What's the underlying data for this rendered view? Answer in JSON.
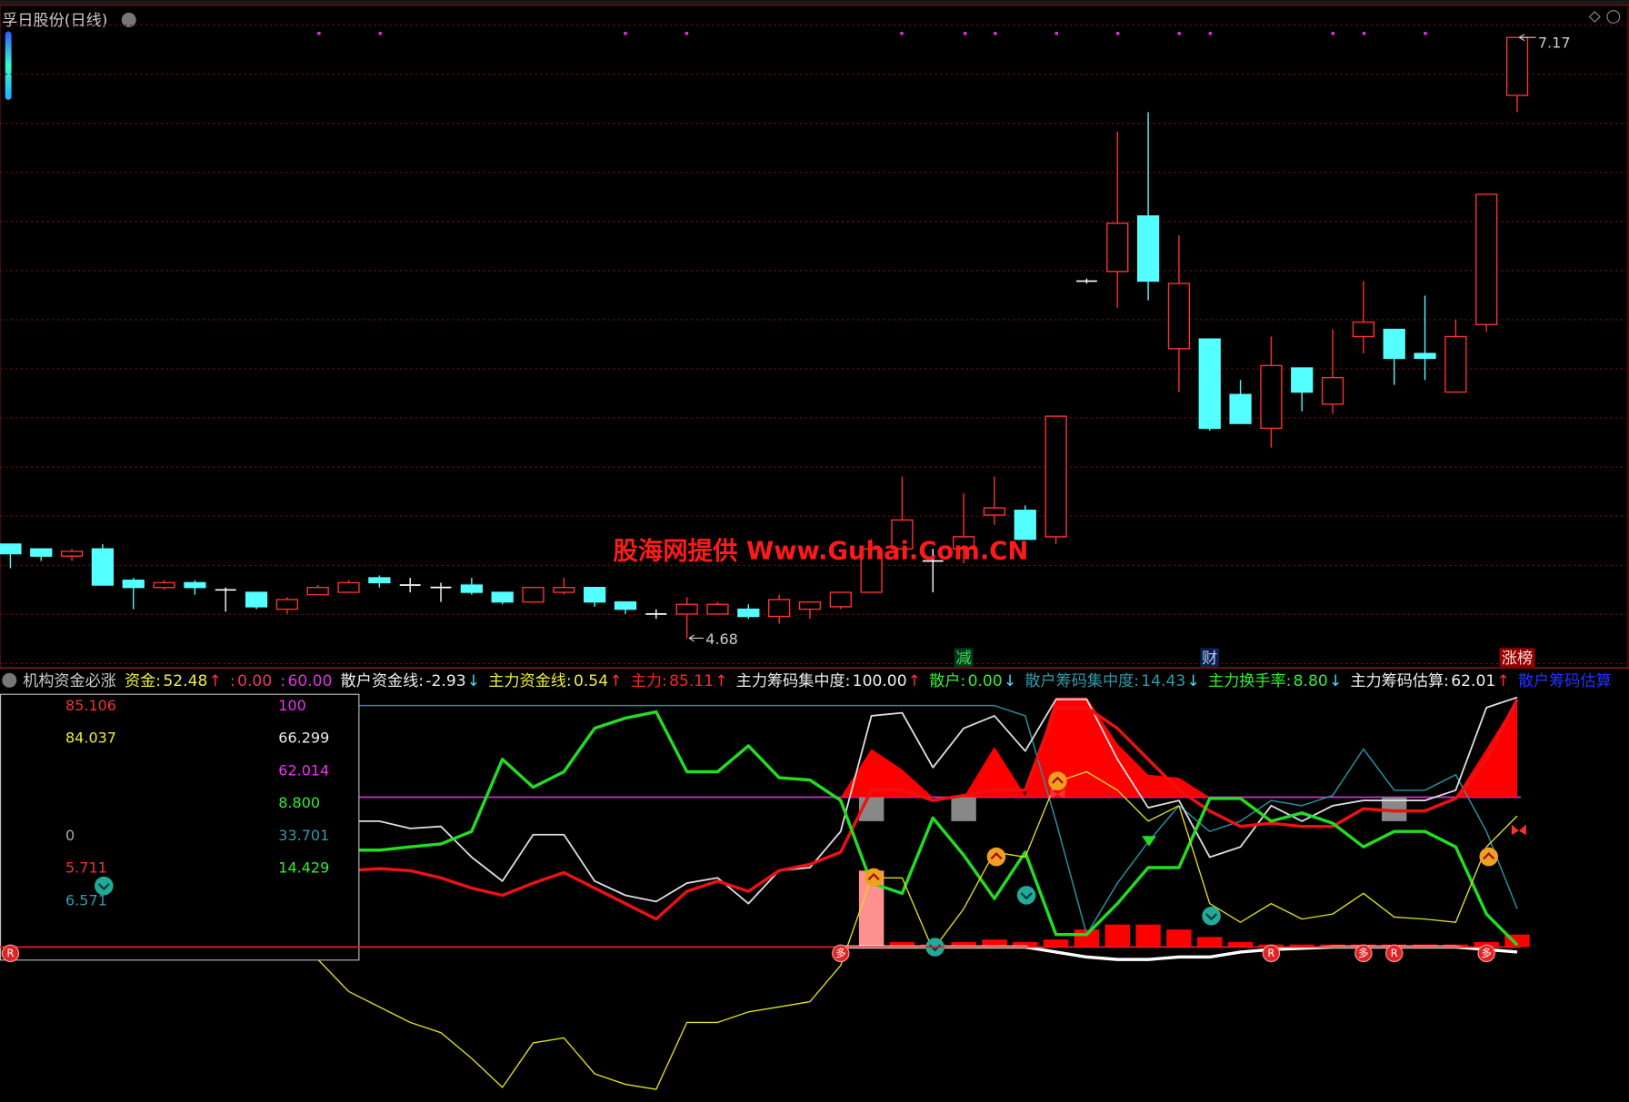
{
  "chart_data": [
    {
      "type": "candlestick",
      "title": "孚日股份(日线)",
      "watermark": "股海网提供 Www.Guhai.Com.CN",
      "ylim": [
        4.57,
        7.29
      ],
      "up_color": "#ff3232",
      "down_color": "#54ffff",
      "flat_color": "#ffffff",
      "open": [
        5.07,
        5.05,
        5.02,
        5.05,
        4.92,
        4.89,
        4.91,
        4.88,
        4.87,
        4.8,
        4.86,
        4.87,
        4.93,
        4.9,
        4.89,
        4.9,
        4.87,
        4.83,
        4.87,
        4.89,
        4.83,
        4.78,
        4.78,
        4.78,
        4.8,
        4.77,
        4.8,
        4.81,
        4.87,
        5.05,
        5.0,
        5.05,
        5.19,
        5.21,
        5.1,
        6.16,
        6.2,
        6.43,
        5.88,
        5.92,
        5.69,
        5.55,
        5.8,
        5.65,
        5.93,
        5.96,
        5.86,
        5.7,
        5.98,
        6.93
      ],
      "high": [
        5.07,
        5.05,
        5.05,
        5.07,
        4.93,
        4.92,
        4.92,
        4.89,
        4.87,
        4.85,
        4.9,
        4.92,
        4.94,
        4.93,
        4.91,
        4.93,
        4.87,
        4.89,
        4.93,
        4.89,
        4.83,
        4.8,
        4.85,
        4.83,
        4.82,
        4.86,
        4.83,
        4.87,
        5.09,
        5.35,
        5.05,
        5.28,
        5.35,
        5.23,
        5.6,
        6.17,
        6.78,
        6.86,
        6.35,
        5.92,
        5.75,
        5.93,
        5.8,
        5.96,
        6.16,
        5.96,
        6.1,
        6.0,
        6.52,
        7.17
      ],
      "low": [
        4.97,
        5.0,
        5.0,
        4.9,
        4.8,
        4.88,
        4.86,
        4.79,
        4.8,
        4.78,
        4.86,
        4.87,
        4.89,
        4.87,
        4.83,
        4.86,
        4.82,
        4.83,
        4.86,
        4.81,
        4.78,
        4.76,
        4.68,
        4.78,
        4.76,
        4.74,
        4.76,
        4.8,
        4.87,
        5.05,
        4.87,
        4.99,
        5.15,
        5.09,
        5.07,
        6.15,
        6.05,
        6.08,
        5.7,
        5.54,
        5.57,
        5.47,
        5.62,
        5.61,
        5.86,
        5.73,
        5.75,
        5.7,
        5.95,
        6.86
      ],
      "close": [
        5.03,
        5.02,
        5.04,
        4.9,
        4.89,
        4.91,
        4.89,
        4.88,
        4.81,
        4.84,
        4.89,
        4.91,
        4.91,
        4.9,
        4.89,
        4.87,
        4.83,
        4.89,
        4.89,
        4.83,
        4.8,
        4.78,
        4.82,
        4.82,
        4.77,
        4.84,
        4.83,
        4.87,
        5.05,
        5.17,
        5.0,
        5.1,
        5.22,
        5.09,
        5.6,
        6.16,
        6.4,
        6.16,
        6.15,
        5.55,
        5.57,
        5.81,
        5.7,
        5.76,
        5.99,
        5.84,
        5.84,
        5.93,
        6.52,
        7.17
      ],
      "markers": [
        {
          "text": "减",
          "index": 31,
          "color": "#33dd55",
          "bg": "#053a1a"
        },
        {
          "text": "财",
          "index": 39,
          "color": "#aaccff",
          "bg": "#10204a"
        },
        {
          "text": "涨榜",
          "index": 49,
          "color": "#ffdddd",
          "bg": "#990000"
        }
      ]
    },
    {
      "type": "line",
      "title": "机构资金必涨",
      "ylim": [
        -62,
        111
      ],
      "legend_items": [
        {
          "name": "资金:",
          "value": "52.48",
          "arrow": "↑",
          "color": "#eeee44",
          "arrow_color": "#ff3333"
        },
        {
          "name": ":",
          "value": "0.00",
          "arrow": null,
          "color": "#ee3366",
          "arrow_color": null
        },
        {
          "name": ":",
          "value": "60.00",
          "arrow": null,
          "color": "#dd33dd",
          "arrow_color": null
        },
        {
          "name": "散户资金线:",
          "value": "-2.93",
          "arrow": "↓",
          "color": "#eeeeee",
          "arrow_color": "#44ddff"
        },
        {
          "name": "主力资金线:",
          "value": "0.54",
          "arrow": "↑",
          "color": "#eeee44",
          "arrow_color": "#ff3333"
        },
        {
          "name": "主力:",
          "value": "85.11",
          "arrow": "↑",
          "color": "#ff2222",
          "arrow_color": "#ff3333"
        },
        {
          "name": "主力筹码集中度:",
          "value": "100.00",
          "arrow": "↑",
          "color": "#eeeeee",
          "arrow_color": "#ff3333"
        },
        {
          "name": "散户:",
          "value": "0.00",
          "arrow": "↓",
          "color": "#33ee33",
          "arrow_color": "#44ddff"
        },
        {
          "name": "散户筹码集中度:",
          "value": "14.43",
          "arrow": "↓",
          "color": "#3399aa",
          "arrow_color": "#44ddff"
        },
        {
          "name": "主力换手率:",
          "value": "8.80",
          "arrow": "↓",
          "color": "#33ee33",
          "arrow_color": "#44ddff"
        },
        {
          "name": "主力筹码估算:",
          "value": "62.01",
          "arrow": "↑",
          "color": "#eeeeee",
          "arrow_color": "#ff3333"
        },
        {
          "name": "散户筹码估算",
          "value": null,
          "arrow": null,
          "color": "#2233ff",
          "arrow_color": null
        }
      ],
      "readouts": [
        [
          {
            "text": "85.106",
            "color": "#ee3333"
          },
          {
            "text": "100",
            "color": "#ee33ee"
          }
        ],
        [
          {
            "text": "84.037",
            "color": "#eeee33"
          },
          {
            "text": "66.299",
            "color": "#eeeeee"
          }
        ],
        [
          null,
          {
            "text": "62.014",
            "color": "#ee33ee"
          }
        ],
        [
          null,
          {
            "text": "8.800",
            "color": "#33ee33"
          }
        ],
        [
          {
            "text": "0",
            "color": "#aaaaaa"
          },
          {
            "text": "33.701",
            "color": "#3399aa"
          }
        ],
        [
          {
            "text": "5.711",
            "color": "#ee3333"
          },
          {
            "text": "14.429",
            "color": "#33ee33"
          }
        ],
        [
          {
            "text": "6.571",
            "color": "#3399aa"
          },
          null
        ]
      ],
      "hlines": [
        {
          "value": 60,
          "color": "#cc33cc"
        },
        {
          "value": 0,
          "color": "#dd2222"
        }
      ],
      "series": [
        {
          "type": "area",
          "color": "#ff0000",
          "base": 60,
          "values": [
            null,
            null,
            null,
            null,
            null,
            null,
            null,
            null,
            null,
            null,
            null,
            null,
            null,
            null,
            null,
            null,
            null,
            null,
            null,
            null,
            null,
            null,
            null,
            null,
            null,
            null,
            null,
            60,
            79.3,
            71.1,
            60,
            60,
            80.2,
            60.7,
            100,
            100,
            81.4,
            69.0,
            67.8,
            60,
            60,
            60,
            60,
            60,
            60,
            60,
            60,
            60,
            79.3,
            99.2
          ]
        },
        {
          "type": "bar",
          "color": "#888888",
          "base": 60,
          "values": [
            null,
            null,
            null,
            null,
            null,
            null,
            null,
            null,
            null,
            null,
            null,
            null,
            null,
            null,
            null,
            null,
            null,
            null,
            null,
            null,
            null,
            null,
            null,
            null,
            null,
            null,
            null,
            null,
            50.4,
            null,
            null,
            50.4,
            null,
            null,
            null,
            null,
            null,
            null,
            null,
            null,
            null,
            null,
            null,
            null,
            null,
            50.4,
            null,
            null,
            null,
            null
          ]
        },
        {
          "type": "bar",
          "color": "#ff9090",
          "base": 0,
          "values": [
            null,
            null,
            null,
            null,
            null,
            null,
            null,
            null,
            null,
            null,
            null,
            null,
            null,
            null,
            null,
            null,
            null,
            null,
            null,
            null,
            null,
            null,
            null,
            null,
            null,
            null,
            null,
            null,
            30.6,
            null,
            null,
            null,
            null,
            null,
            null,
            null,
            null,
            null,
            null,
            null,
            null,
            null,
            null,
            null,
            null,
            null,
            null,
            null,
            null,
            null
          ]
        },
        {
          "type": "bar",
          "color": "#ff0000",
          "base": 0,
          "values": [
            null,
            null,
            null,
            null,
            null,
            null,
            null,
            null,
            null,
            null,
            null,
            null,
            null,
            null,
            null,
            null,
            null,
            null,
            null,
            null,
            null,
            null,
            null,
            null,
            null,
            null,
            null,
            null,
            null,
            2,
            1,
            2,
            3,
            2,
            3,
            7,
            9,
            9,
            7,
            4,
            2,
            1,
            1,
            1,
            1,
            1,
            1,
            1,
            2,
            5
          ]
        },
        {
          "type": "line",
          "color": "#2a8fa0",
          "width": 1.3,
          "values": [
            null,
            null,
            null,
            null,
            null,
            null,
            null,
            null,
            null,
            null,
            null,
            96.7,
            96.7,
            96.7,
            96.7,
            96.7,
            96.7,
            96.7,
            96.7,
            96.7,
            96.7,
            96.7,
            96.7,
            96.7,
            96.7,
            96.7,
            96.7,
            96.7,
            96.7,
            96.7,
            96.7,
            96.7,
            96.7,
            92.6,
            50.4,
            5.0,
            25.6,
            42.1,
            56.6,
            46.3,
            50.4,
            58.7,
            56.6,
            60.7,
            79.3,
            62.8,
            62.8,
            69.0,
            46.3,
            15.3
          ]
        },
        {
          "type": "line",
          "color": "#dddddd",
          "width": 1.6,
          "values": [
            null,
            null,
            null,
            null,
            null,
            null,
            null,
            null,
            null,
            null,
            null,
            50.4,
            50.4,
            47.5,
            48.3,
            36.0,
            26.4,
            45.0,
            45.0,
            26.4,
            20.7,
            18.2,
            25.6,
            27.7,
            17.4,
            30.6,
            31.8,
            46.3,
            92.6,
            93.8,
            71.9,
            87.6,
            92.6,
            78.5,
            99.2,
            99.2,
            75.2,
            55.8,
            58.7,
            36.0,
            40.1,
            56.6,
            50.4,
            56.6,
            58.7,
            58.7,
            58.7,
            62.8,
            95.9,
            100
          ]
        },
        {
          "type": "line",
          "color": "#ee1111",
          "width": 3,
          "values": [
            null,
            null,
            null,
            null,
            null,
            null,
            null,
            null,
            null,
            null,
            null,
            30.6,
            31.4,
            30.6,
            27.7,
            23.6,
            20.7,
            25.6,
            29.8,
            23.6,
            17.4,
            11.2,
            22.3,
            26.4,
            22.3,
            30.6,
            33.1,
            38.0,
            62.8,
            62.8,
            58.7,
            60.7,
            62.8,
            62.8,
            95.9,
            95.9,
            87.6,
            75.2,
            62.8,
            54.5,
            48.3,
            49.6,
            48.3,
            48.3,
            55.4,
            54.5,
            54.5,
            59.5,
            75.2,
            99.2
          ]
        },
        {
          "type": "line",
          "color": "#22dd22",
          "width": 3,
          "values": [
            null,
            null,
            null,
            null,
            null,
            null,
            null,
            null,
            null,
            null,
            null,
            38.8,
            38.8,
            40.1,
            41.3,
            46.3,
            75.2,
            64.0,
            70.2,
            87.6,
            91.7,
            94.2,
            70.2,
            70.2,
            80.6,
            67.8,
            66.9,
            58.7,
            25.6,
            21.5,
            51.7,
            36.8,
            19.4,
            38.0,
            5.0,
            5.0,
            17.4,
            31.8,
            31.8,
            59.5,
            59.5,
            50.4,
            53.7,
            49.6,
            40.1,
            46.3,
            46.3,
            40.1,
            13.2,
            0.8
          ]
        },
        {
          "type": "line",
          "color": "#dddd22",
          "width": 1.2,
          "values": [
            null,
            null,
            null,
            null,
            null,
            null,
            null,
            null,
            null,
            null,
            -5,
            -17.8,
            -24,
            -30.2,
            -34.3,
            -44.6,
            -56.2,
            -38.4,
            -36.4,
            -50.8,
            -55.0,
            -57.0,
            -30.2,
            -30.2,
            -26.0,
            -24.0,
            -21.9,
            -7.4,
            27.7,
            27.7,
            -1.2,
            15.3,
            38.0,
            36.0,
            66.1,
            70.2,
            62.8,
            50.4,
            56.6,
            17.4,
            9.9,
            17.4,
            11.2,
            13.2,
            21.5,
            12.0,
            11.2,
            9.9,
            40.1,
            52.5
          ]
        },
        {
          "type": "line",
          "color": "#ffffff",
          "width": 3,
          "values": [
            null,
            null,
            null,
            null,
            null,
            null,
            null,
            null,
            null,
            null,
            null,
            null,
            null,
            null,
            null,
            null,
            null,
            null,
            null,
            null,
            null,
            null,
            null,
            null,
            null,
            null,
            null,
            0,
            0,
            0,
            0,
            0,
            0,
            0,
            -2,
            -4,
            -5,
            -5,
            -4,
            -4,
            -2,
            -1,
            -0.5,
            0,
            0,
            0,
            0,
            0,
            -1,
            -2
          ]
        }
      ],
      "badges": [
        {
          "text": "R",
          "index": 0
        },
        {
          "text": "多",
          "index": 27
        },
        {
          "text": "R",
          "index": 41
        },
        {
          "text": "多",
          "index": 44
        },
        {
          "text": "R",
          "index": 45
        },
        {
          "text": "多",
          "index": 48
        }
      ]
    }
  ]
}
